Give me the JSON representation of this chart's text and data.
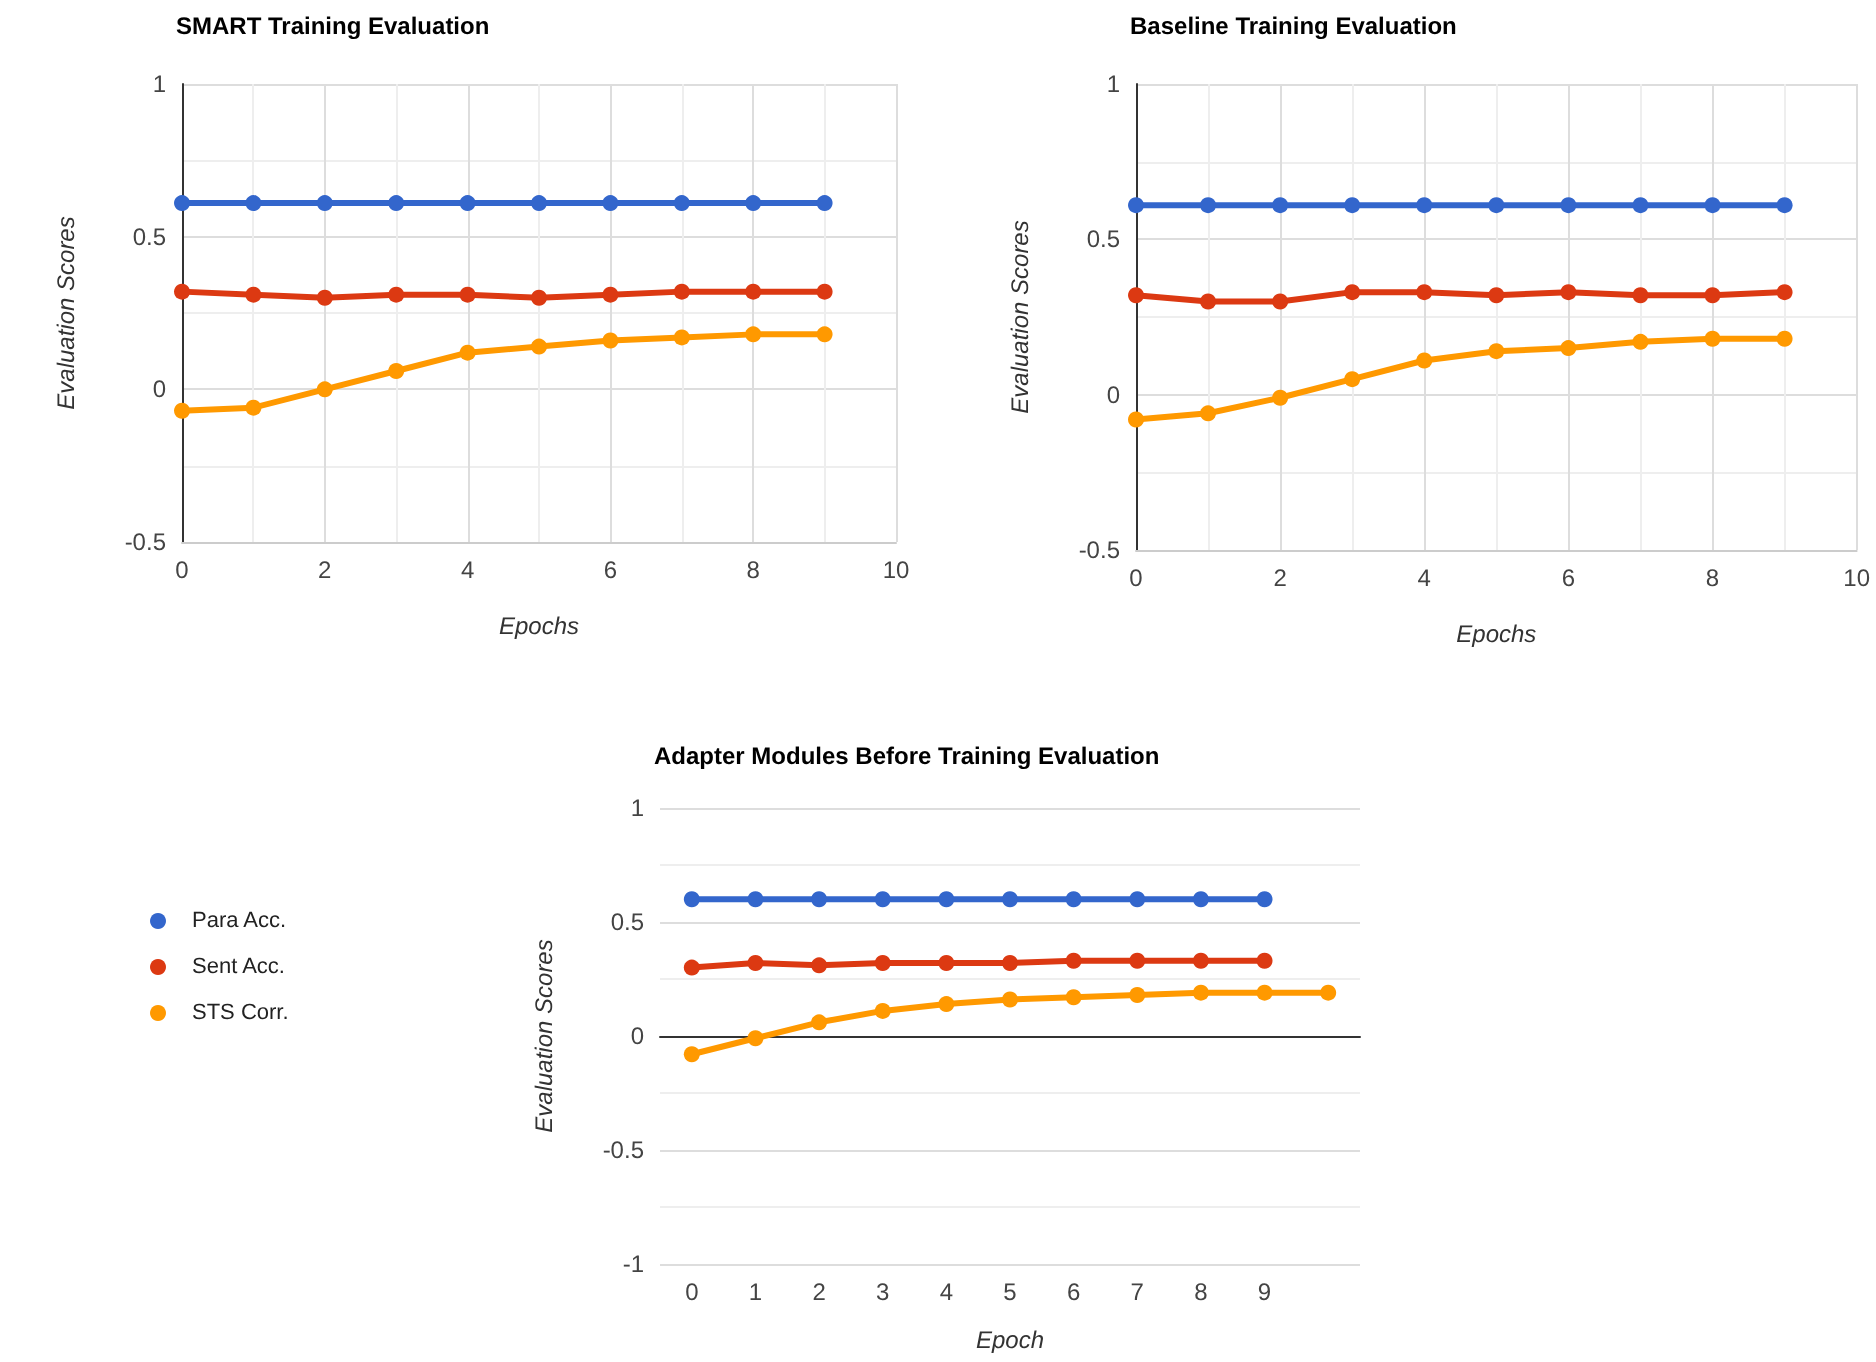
{
  "chart_data": [
    {
      "type": "line",
      "title": "SMART Training Evaluation",
      "xlabel": "Epochs",
      "ylabel": "Evaluation Scores",
      "x": [
        0,
        1,
        2,
        3,
        4,
        5,
        6,
        7,
        8,
        9
      ],
      "xlim": [
        0,
        10
      ],
      "xticks": [
        0,
        2,
        4,
        6,
        8,
        10
      ],
      "ylim": [
        -0.5,
        1
      ],
      "yticks": [
        -0.5,
        0,
        0.5,
        1
      ],
      "grid": true,
      "legend": false,
      "marker": "circle",
      "line_style": "solid",
      "series": [
        {
          "color": "#3366cc",
          "values": [
            0.61,
            0.61,
            0.61,
            0.61,
            0.61,
            0.61,
            0.61,
            0.61,
            0.61,
            0.61
          ]
        },
        {
          "color": "#dc3912",
          "values": [
            0.32,
            0.31,
            0.3,
            0.31,
            0.31,
            0.3,
            0.31,
            0.32,
            0.32,
            0.32
          ]
        },
        {
          "color": "#ff9900",
          "values": [
            -0.07,
            -0.06,
            0.0,
            0.06,
            0.12,
            0.14,
            0.16,
            0.17,
            0.18,
            0.18
          ]
        }
      ]
    },
    {
      "type": "line",
      "title": "Baseline Training Evaluation",
      "xlabel": "Epochs",
      "ylabel": "Evaluation Scores",
      "x": [
        0,
        1,
        2,
        3,
        4,
        5,
        6,
        7,
        8,
        9
      ],
      "xlim": [
        0,
        10
      ],
      "xticks": [
        0,
        2,
        4,
        6,
        8,
        10
      ],
      "ylim": [
        -0.5,
        1
      ],
      "yticks": [
        -0.5,
        0,
        0.5,
        1
      ],
      "grid": true,
      "legend": false,
      "marker": "circle",
      "line_style": "solid",
      "series": [
        {
          "color": "#3366cc",
          "values": [
            0.61,
            0.61,
            0.61,
            0.61,
            0.61,
            0.61,
            0.61,
            0.61,
            0.61,
            0.61
          ]
        },
        {
          "color": "#dc3912",
          "values": [
            0.32,
            0.3,
            0.3,
            0.33,
            0.33,
            0.32,
            0.33,
            0.32,
            0.32,
            0.33
          ]
        },
        {
          "color": "#ff9900",
          "values": [
            -0.08,
            -0.06,
            -0.01,
            0.05,
            0.11,
            0.14,
            0.15,
            0.17,
            0.18,
            0.18
          ]
        }
      ]
    },
    {
      "type": "line",
      "title": "Adapter Modules Before Training Evaluation",
      "xlabel": "Epoch",
      "ylabel": "Evaluation Scores",
      "categories": [
        "0",
        "1",
        "2",
        "3",
        "4",
        "5",
        "6",
        "7",
        "8",
        "9",
        null
      ],
      "ylim": [
        -1,
        1
      ],
      "yticks": [
        -1,
        -0.5,
        0,
        0.5,
        1
      ],
      "grid": "y",
      "legend": "left",
      "marker": "circle",
      "line_style": "solid",
      "series": [
        {
          "name": "Para Acc.",
          "color": "#3366cc",
          "values": [
            0.6,
            0.6,
            0.6,
            0.6,
            0.6,
            0.6,
            0.6,
            0.6,
            0.6,
            0.6,
            null
          ]
        },
        {
          "name": "Sent Acc.",
          "color": "#dc3912",
          "values": [
            0.3,
            0.32,
            0.31,
            0.32,
            0.32,
            0.32,
            0.33,
            0.33,
            0.33,
            0.33,
            null
          ]
        },
        {
          "name": "STS Corr.",
          "color": "#ff9900",
          "values": [
            -0.08,
            -0.01,
            0.06,
            0.11,
            0.14,
            0.16,
            0.17,
            0.18,
            0.19,
            0.19,
            0.19
          ]
        }
      ]
    }
  ]
}
